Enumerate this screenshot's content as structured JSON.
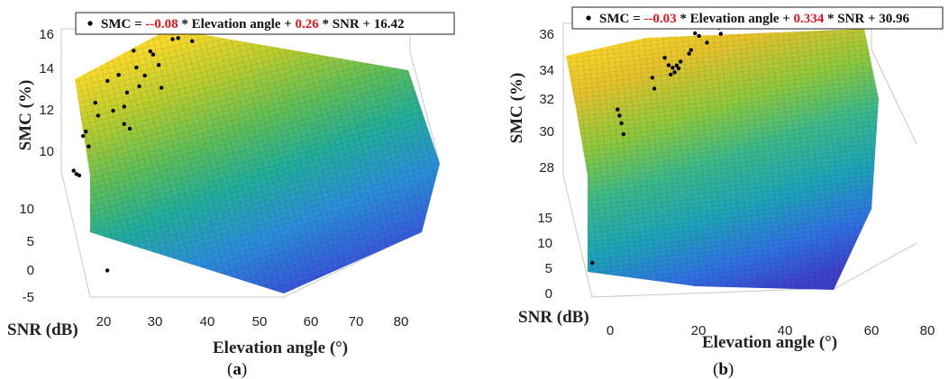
{
  "chart_data": [
    {
      "type": "scatter",
      "panel": "a",
      "caption_letter": "a",
      "legend": {
        "marker_label": "SMC = ",
        "coef_elev": "--0.08",
        "elev_text": " * Elevation angle + ",
        "coef_snr": "0.26",
        "snr_text": " * SNR + 16.42"
      },
      "zlabel": "SMC (%)",
      "ylabel": "SNR (dB)",
      "xlabel": "Elevation angle (°)",
      "z_ticks": [
        "16",
        "14",
        "12",
        "10"
      ],
      "y_ticks": [
        "10",
        "5",
        "0",
        "-5"
      ],
      "x_ticks": [
        "20",
        "30",
        "40",
        "50",
        "60",
        "70",
        "80"
      ],
      "surface": "fitted plane, parula colormap (blue low, yellow high)",
      "points": [
        {
          "x": 22,
          "y": 8,
          "z": 10.5
        },
        {
          "x": 23,
          "y": 8,
          "z": 10.3
        },
        {
          "x": 24,
          "y": 8,
          "z": 10.2
        },
        {
          "x": 26,
          "y": 9,
          "z": 11.8
        },
        {
          "x": 27,
          "y": 9,
          "z": 12.0
        },
        {
          "x": 28,
          "y": 9,
          "z": 11.2
        },
        {
          "x": 31,
          "y": 10,
          "z": 13.0
        },
        {
          "x": 32,
          "y": 10,
          "z": 12.3
        },
        {
          "x": 36,
          "y": 11,
          "z": 13.6
        },
        {
          "x": 38,
          "y": 11,
          "z": 12.0
        },
        {
          "x": 40,
          "y": 11,
          "z": 13.8
        },
        {
          "x": 42,
          "y": 11,
          "z": 12.1
        },
        {
          "x": 42,
          "y": 11,
          "z": 11.2
        },
        {
          "x": 43,
          "y": 11,
          "z": 12.8
        },
        {
          "x": 44,
          "y": 11,
          "z": 10.9
        },
        {
          "x": 46,
          "y": 12,
          "z": 14.5
        },
        {
          "x": 47,
          "y": 12,
          "z": 13.6
        },
        {
          "x": 48,
          "y": 12,
          "z": 12.6
        },
        {
          "x": 50,
          "y": 12,
          "z": 13.1
        },
        {
          "x": 52,
          "y": 12,
          "z": 14.3
        },
        {
          "x": 53,
          "y": 12,
          "z": 14.1
        },
        {
          "x": 55,
          "y": 12,
          "z": 13.5
        },
        {
          "x": 56,
          "y": 12,
          "z": 12.3
        },
        {
          "x": 60,
          "y": 12,
          "z": 14.7
        },
        {
          "x": 62,
          "y": 12,
          "z": 14.7
        },
        {
          "x": 66,
          "y": 12,
          "z": 14.9
        },
        {
          "x": 67,
          "y": 12,
          "z": 14.4
        },
        {
          "x": 68,
          "y": 12,
          "z": 15.2
        },
        {
          "x": 69,
          "y": 12,
          "z": 15.4
        },
        {
          "x": 28,
          "y": -2,
          "z": 9.0
        }
      ]
    },
    {
      "type": "scatter",
      "panel": "b",
      "caption_letter": "b",
      "legend": {
        "marker_label": "SMC = ",
        "coef_elev": "--0.03",
        "elev_text": " * Elevation angle + ",
        "coef_snr": "0.334",
        "snr_text": " * SNR + 30.96"
      },
      "zlabel": "SMC (%)",
      "ylabel": "SNR (dB)",
      "xlabel": "Elevation angle (°)",
      "z_ticks": [
        "36",
        "34",
        "32",
        "30",
        "28"
      ],
      "y_ticks": [
        "15",
        "10",
        "5",
        "0"
      ],
      "x_ticks": [
        "0",
        "20",
        "40",
        "60",
        "80"
      ],
      "surface": "fitted plane, parula colormap (blue low, yellow high)",
      "points": [
        {
          "x": 18,
          "y": 12,
          "z": 32.2
        },
        {
          "x": 19,
          "y": 12,
          "z": 31.8
        },
        {
          "x": 20,
          "y": 12,
          "z": 31.3
        },
        {
          "x": 21,
          "y": 12,
          "z": 30.6
        },
        {
          "x": 37,
          "y": 14,
          "z": 33.0
        },
        {
          "x": 38,
          "y": 14,
          "z": 32.3
        },
        {
          "x": 44,
          "y": 15,
          "z": 33.7
        },
        {
          "x": 46,
          "y": 15,
          "z": 33.2
        },
        {
          "x": 47,
          "y": 15,
          "z": 32.6
        },
        {
          "x": 48,
          "y": 15,
          "z": 33.0
        },
        {
          "x": 49,
          "y": 15,
          "z": 32.7
        },
        {
          "x": 50,
          "y": 15,
          "z": 33.1
        },
        {
          "x": 51,
          "y": 15,
          "z": 32.9
        },
        {
          "x": 52,
          "y": 15,
          "z": 33.3
        },
        {
          "x": 57,
          "y": 16,
          "z": 33.3
        },
        {
          "x": 58,
          "y": 16,
          "z": 33.5
        },
        {
          "x": 60,
          "y": 16,
          "z": 34.5
        },
        {
          "x": 62,
          "y": 16,
          "z": 34.3
        },
        {
          "x": 66,
          "y": 16,
          "z": 33.8
        },
        {
          "x": 70,
          "y": 16,
          "z": 35.0
        },
        {
          "x": 72,
          "y": 16,
          "z": 34.6
        },
        {
          "x": 73,
          "y": 16,
          "z": 34.2
        },
        {
          "x": 71,
          "y": 16,
          "z": 35.2
        },
        {
          "x": -2,
          "y": 2,
          "z": 27.0
        }
      ]
    }
  ]
}
